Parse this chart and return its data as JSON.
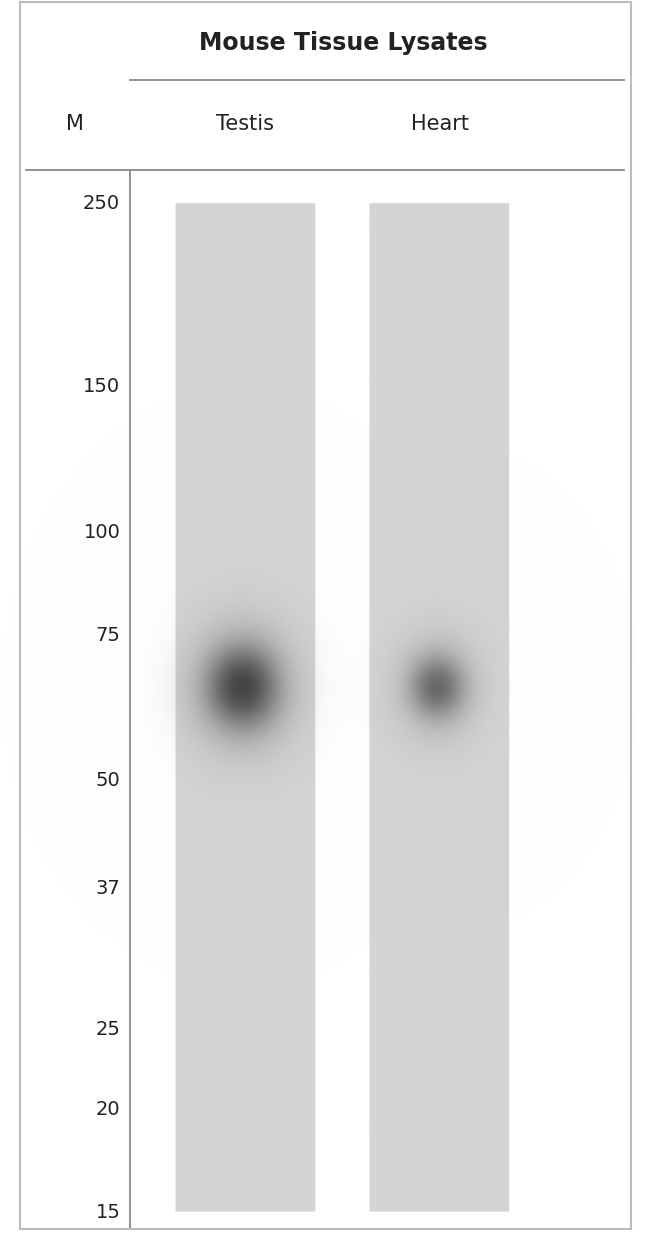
{
  "title": "Mouse Tissue Lysates",
  "col_labels": [
    "Testis",
    "Heart"
  ],
  "marker_label": "M",
  "mw_markers": [
    250,
    150,
    100,
    75,
    50,
    37,
    25,
    20,
    15
  ],
  "bg_color": "#ffffff",
  "lane_bg_color": "#d4d4d4",
  "band_mw": 65,
  "title_fontsize": 17,
  "label_fontsize": 15,
  "marker_fontsize": 14,
  "mw_min": 15,
  "mw_max": 250,
  "outer_border_color": "#bbbbbb",
  "line_color": "#888888",
  "text_color": "#222222"
}
